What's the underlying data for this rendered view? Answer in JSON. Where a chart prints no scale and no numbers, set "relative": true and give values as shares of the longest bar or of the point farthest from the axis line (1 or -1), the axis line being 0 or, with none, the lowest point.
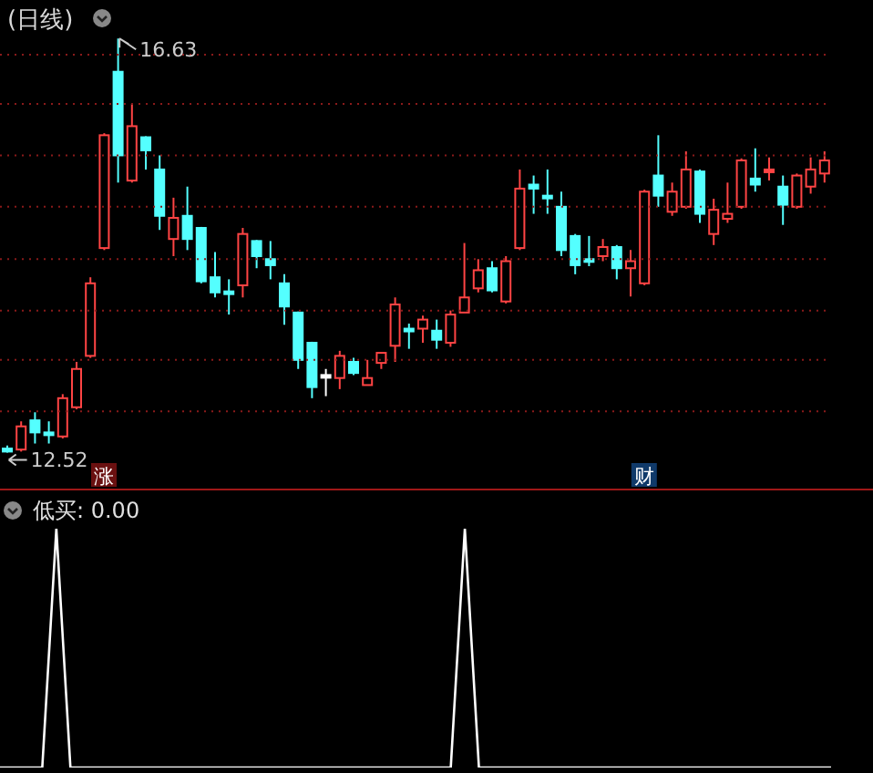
{
  "chart_data": [
    {
      "type": "candlestick",
      "title": "(日线)",
      "grid": "y",
      "categories": [
        null,
        null,
        null,
        null,
        null,
        null,
        null,
        null,
        null,
        null,
        null,
        null,
        null,
        null,
        null,
        null,
        null,
        null,
        null,
        null,
        null,
        null,
        null,
        null,
        null,
        null,
        null,
        null,
        null,
        null,
        null,
        null,
        null,
        null,
        null,
        null,
        null,
        null,
        null,
        null,
        null,
        null,
        null,
        null,
        null,
        null,
        null,
        null,
        null,
        null,
        null,
        null,
        null,
        null,
        null,
        null,
        null,
        null,
        null,
        null
      ],
      "yticks": [
        {
          "value": 12.93,
          "label": null
        },
        {
          "value": 13.44,
          "label": null
        },
        {
          "value": 13.93,
          "label": null
        },
        {
          "value": 14.44,
          "label": null
        },
        {
          "value": 14.96,
          "label": null
        },
        {
          "value": 15.47,
          "label": null
        },
        {
          "value": 15.98,
          "label": null
        },
        {
          "value": 16.47,
          "label": null
        }
      ],
      "ohlc": [
        [
          12.56,
          12.59,
          12.52,
          12.53
        ],
        [
          12.55,
          12.83,
          12.53,
          12.78
        ],
        [
          12.84,
          12.92,
          12.61,
          12.72
        ],
        [
          12.72,
          12.83,
          12.61,
          12.71
        ],
        [
          12.68,
          13.1,
          12.66,
          13.06
        ],
        [
          12.97,
          13.42,
          12.95,
          13.35
        ],
        [
          13.48,
          14.26,
          13.46,
          14.2
        ],
        [
          14.55,
          15.69,
          14.53,
          15.67
        ],
        [
          16.3,
          16.63,
          15.2,
          15.47
        ],
        [
          15.22,
          15.98,
          15.2,
          15.76
        ],
        [
          15.65,
          15.66,
          15.33,
          15.52
        ],
        [
          15.33,
          15.47,
          14.73,
          14.87
        ],
        [
          14.64,
          15.05,
          14.47,
          14.85
        ],
        [
          14.87,
          15.16,
          14.53,
          14.64
        ],
        [
          14.75,
          14.76,
          14.2,
          14.22
        ],
        [
          14.26,
          14.51,
          14.06,
          14.11
        ],
        [
          14.12,
          14.24,
          13.89,
          14.11
        ],
        [
          14.18,
          14.75,
          14.06,
          14.69
        ],
        [
          14.62,
          14.63,
          14.35,
          14.47
        ],
        [
          14.44,
          14.62,
          14.24,
          14.38
        ],
        [
          14.2,
          14.29,
          13.79,
          13.97
        ],
        [
          13.91,
          13.92,
          13.35,
          13.44
        ],
        [
          13.61,
          13.62,
          13.06,
          13.17
        ],
        [
          13.29,
          13.35,
          13.08,
          13.27
        ],
        [
          13.26,
          13.53,
          13.15,
          13.48
        ],
        [
          13.42,
          13.46,
          13.29,
          13.31
        ],
        [
          13.19,
          13.44,
          13.19,
          13.26
        ],
        [
          13.41,
          13.51,
          13.35,
          13.51
        ],
        [
          13.58,
          14.06,
          13.42,
          13.99
        ],
        [
          13.75,
          13.8,
          13.55,
          13.74
        ],
        [
          13.75,
          13.88,
          13.61,
          13.84
        ],
        [
          13.73,
          13.84,
          13.55,
          13.64
        ],
        [
          13.61,
          13.93,
          13.57,
          13.89
        ],
        [
          13.91,
          14.6,
          13.91,
          14.06
        ],
        [
          14.15,
          14.44,
          14.11,
          14.33
        ],
        [
          14.35,
          14.42,
          14.11,
          14.13
        ],
        [
          14.02,
          14.47,
          14.0,
          14.42
        ],
        [
          14.55,
          15.33,
          14.53,
          15.14
        ],
        [
          15.18,
          15.27,
          14.89,
          15.14
        ],
        [
          15.07,
          15.33,
          14.89,
          15.06
        ],
        [
          14.96,
          15.11,
          14.47,
          14.53
        ],
        [
          14.67,
          14.69,
          14.29,
          14.38
        ],
        [
          14.44,
          14.67,
          14.37,
          14.43
        ],
        [
          14.47,
          14.64,
          14.42,
          14.56
        ],
        [
          14.56,
          14.58,
          14.24,
          14.35
        ],
        [
          14.35,
          14.53,
          14.07,
          14.42
        ],
        [
          14.2,
          15.13,
          14.18,
          15.11
        ],
        [
          15.27,
          15.67,
          14.96,
          15.07
        ],
        [
          14.91,
          15.2,
          14.87,
          15.11
        ],
        [
          14.96,
          15.51,
          14.94,
          15.33
        ],
        [
          15.31,
          15.33,
          14.8,
          14.89
        ],
        [
          14.69,
          15.04,
          14.58,
          14.93
        ],
        [
          14.84,
          15.2,
          14.8,
          14.89
        ],
        [
          14.96,
          15.44,
          14.94,
          15.42
        ],
        [
          15.24,
          15.54,
          15.11,
          15.18
        ],
        [
          15.32,
          15.45,
          15.22,
          15.33
        ],
        [
          15.16,
          15.27,
          14.78,
          14.98
        ],
        [
          14.96,
          15.29,
          14.94,
          15.27
        ],
        [
          15.16,
          15.45,
          15.09,
          15.33
        ],
        [
          15.29,
          15.51,
          15.2,
          15.42
        ]
      ],
      "colors": [
        "#54ffff",
        "#ff4444",
        "#54ffff",
        "#54ffff",
        "#ff4444",
        "#ff4444",
        "#ff4444",
        "#ff4444",
        "#54ffff",
        "#ff4444",
        "#54ffff",
        "#54ffff",
        "#ff4444",
        "#54ffff",
        "#54ffff",
        "#54ffff",
        "#54ffff",
        "#ff4444",
        "#54ffff",
        "#54ffff",
        "#54ffff",
        "#54ffff",
        "#54ffff",
        "#ffffff",
        "#ff4444",
        "#54ffff",
        "#ff4444",
        "#ff4444",
        "#ff4444",
        "#54ffff",
        "#ff4444",
        "#54ffff",
        "#ff4444",
        "#ff4444",
        "#ff4444",
        "#54ffff",
        "#ff4444",
        "#ff4444",
        "#54ffff",
        "#54ffff",
        "#54ffff",
        "#54ffff",
        "#54ffff",
        "#ff4444",
        "#54ffff",
        "#ff4444",
        "#ff4444",
        "#54ffff",
        "#ff4444",
        "#ff4444",
        "#54ffff",
        "#ff4444",
        "#ff4444",
        "#ff4444",
        "#54ffff",
        "#ff4444",
        "#54ffff",
        "#ff4444",
        "#ff4444",
        "#ff4444"
      ],
      "annotations": [
        "16.63",
        "12.52",
        "涨",
        "财"
      ]
    },
    {
      "type": "line",
      "title": "低买: 0.00",
      "relative": true,
      "categories": [
        null,
        null,
        null,
        null,
        null,
        null,
        null,
        null,
        null,
        null,
        null,
        null,
        null,
        null,
        null,
        null,
        null,
        null,
        null,
        null,
        null,
        null,
        null,
        null,
        null,
        null,
        null,
        null,
        null,
        null,
        null,
        null,
        null,
        null,
        null,
        null,
        null,
        null,
        null,
        null,
        null,
        null,
        null,
        null,
        null,
        null,
        null,
        null,
        null,
        null,
        null,
        null,
        null,
        null,
        null,
        null,
        null,
        null,
        null,
        null
      ],
      "series": [
        {
          "color": "#ffffff",
          "values": [
            0,
            0,
            0,
            0,
            1,
            0,
            0,
            0,
            0,
            0,
            0,
            0,
            0,
            0,
            0,
            0,
            0,
            0,
            0,
            0,
            0,
            0,
            0,
            0,
            0,
            0,
            0,
            0,
            0,
            0,
            0,
            0,
            0,
            1,
            0,
            0,
            0,
            0,
            0,
            0,
            0,
            0,
            0,
            0,
            0,
            0,
            0,
            0,
            0,
            0,
            0,
            0,
            0,
            0,
            0,
            0,
            0,
            0,
            0,
            0
          ]
        }
      ]
    }
  ]
}
